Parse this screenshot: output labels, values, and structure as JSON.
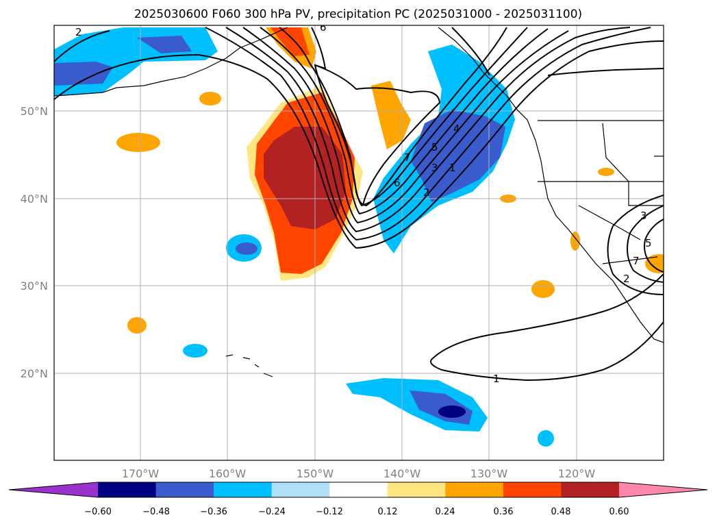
{
  "title": "2025030600 F060 300 hPa PV, precipitation PC (2025031000 - 2025031100)",
  "lat_labels": [
    "50°N",
    "40°N",
    "30°N",
    "20°N"
  ],
  "lon_labels": [
    "170°W",
    "160°W",
    "150°W",
    "140°W",
    "130°W",
    "120°W"
  ],
  "colorbar": {
    "tick_labels": [
      "−0.60",
      "−0.48",
      "−0.36",
      "−0.24",
      "−0.12",
      "0.12",
      "0.24",
      "0.36",
      "0.48",
      "0.60"
    ],
    "colors": [
      "#9933cc",
      "#000080",
      "#3a5bcc",
      "#00bfff",
      "#b0e0f8",
      "#ffffff",
      "#ffe680",
      "#ffa500",
      "#ff4500",
      "#b22222",
      "#ff88aa"
    ]
  },
  "contour_labels": [
    "2",
    "6",
    "7",
    "6",
    "5",
    "4",
    "3",
    "2",
    "1",
    "3",
    "5",
    "7",
    "2",
    "1"
  ],
  "colors": {
    "frame": "#000000",
    "grid": "#b0b0b0",
    "coast": "#000000"
  }
}
